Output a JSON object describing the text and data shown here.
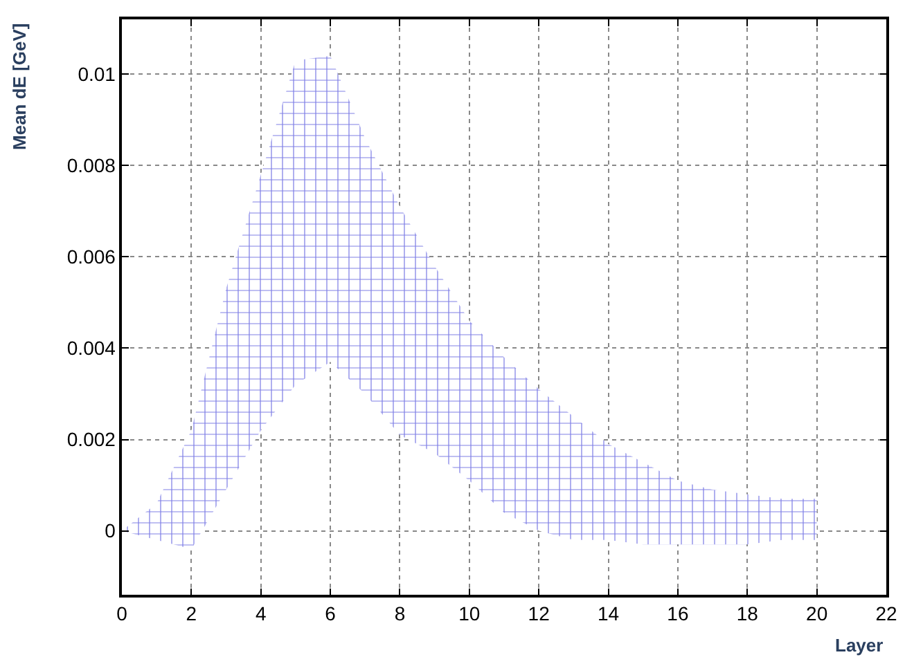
{
  "chart_data": {
    "type": "line",
    "xlabel": "Layer",
    "ylabel": "Mean dE [GeV]",
    "x": [
      0,
      1,
      2,
      3,
      4,
      5,
      6,
      7,
      8,
      9,
      10,
      11,
      12,
      13,
      14,
      15,
      16,
      17,
      18,
      19,
      20
    ],
    "series": [
      {
        "color": "#0000cc",
        "values": [
          null,
          null,
          null,
          null,
          null,
          null,
          null,
          null,
          null,
          null,
          null,
          null,
          null,
          null,
          null,
          null,
          null,
          null,
          null,
          null,
          null
        ],
        "lower": [
          0.0,
          -0.0002,
          -0.0004,
          0.0009,
          0.0022,
          0.0032,
          0.0037,
          0.003,
          0.0021,
          0.0017,
          0.0011,
          0.0004,
          0.0,
          -0.0002,
          -0.0002,
          -0.0003,
          -0.0003,
          -0.0003,
          -0.0003,
          -0.0002,
          -0.0002
        ],
        "upper": [
          0.0,
          0.0006,
          0.0022,
          0.0053,
          0.0078,
          0.0103,
          0.0104,
          0.0086,
          0.0071,
          0.0058,
          0.0046,
          0.0038,
          0.0031,
          0.0025,
          0.0019,
          0.0015,
          0.0011,
          0.0009,
          0.0008,
          0.0007,
          0.0007
        ]
      }
    ],
    "xlim": [
      0,
      22
    ],
    "xticks": [
      0,
      2,
      4,
      6,
      8,
      10,
      12,
      14,
      16,
      18,
      20,
      22
    ],
    "ylim": [
      -0.0014,
      0.0112
    ],
    "yticks": [
      0,
      0.002,
      0.004,
      0.006,
      0.008,
      0.01
    ],
    "grid": true
  }
}
